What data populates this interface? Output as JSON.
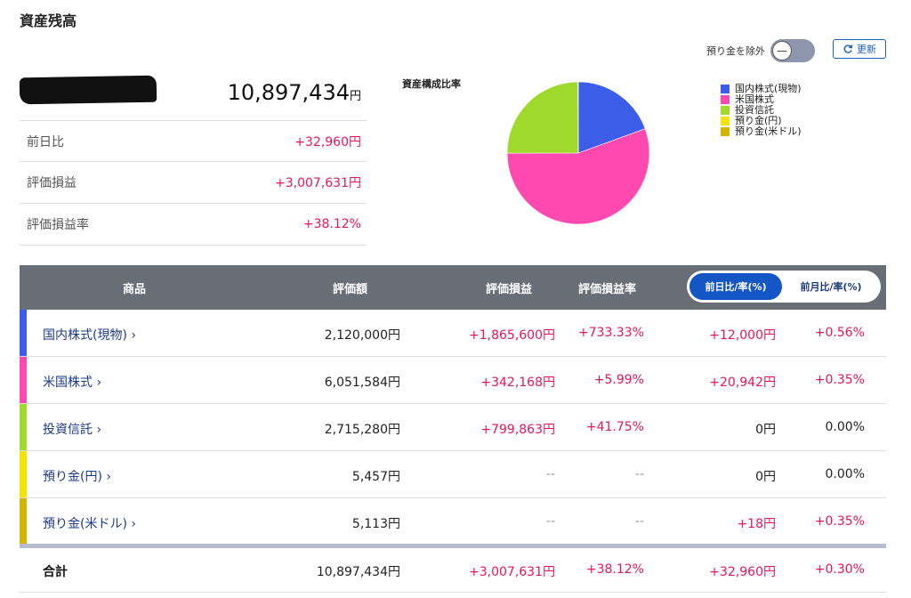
{
  "header": {
    "title": "資産残高"
  },
  "controls": {
    "exclude_deposit_label": "預り金を除外",
    "toggle_symbol": "—",
    "refresh_label": "更新"
  },
  "summary": {
    "total_value": "10,897,434",
    "total_unit": "円",
    "rows": [
      {
        "label": "前日比",
        "value": "+32,960円"
      },
      {
        "label": "評価損益",
        "value": "+3,007,631円"
      },
      {
        "label": "評価損益率",
        "value": "+38.12%"
      }
    ]
  },
  "chart_data": {
    "type": "pie",
    "title": "資産構成比率",
    "labels": [
      "国内株式(現物)",
      "米国株式",
      "投資信託",
      "預り金(円)",
      "預り金(米ドル)"
    ],
    "values": [
      2120000,
      6051584,
      2715280,
      5457,
      5113
    ],
    "colors": [
      "#3b5de7",
      "#ff48b0",
      "#9fd92b",
      "#f5e300",
      "#d3b500"
    ]
  },
  "table": {
    "headers": {
      "product": "商品",
      "valuation": "評価額",
      "gain": "評価損益",
      "gain_rate": "評価損益率",
      "toggle_day": "前日比/率(%)",
      "toggle_month": "前月比/率(%)"
    },
    "rows": [
      {
        "name": "国内株式(現物) ›",
        "color": "#3b5de7",
        "valuation": "2,120,000円",
        "gain": "+1,865,600円",
        "gain_rate": "+733.33%",
        "day_diff": "+12,000円",
        "day_rate": "+0.56%"
      },
      {
        "name": "米国株式 ›",
        "color": "#ff48b0",
        "valuation": "6,051,584円",
        "gain": "+342,168円",
        "gain_rate": "+5.99%",
        "day_diff": "+20,942円",
        "day_rate": "+0.35%"
      },
      {
        "name": "投資信託 ›",
        "color": "#9fd92b",
        "valuation": "2,715,280円",
        "gain": "+799,863円",
        "gain_rate": "+41.75%",
        "day_diff": "0円",
        "day_rate": "0.00%"
      },
      {
        "name": "預り金(円) ›",
        "color": "#f5e300",
        "valuation": "5,457円",
        "gain": "--",
        "gain_rate": "--",
        "day_diff": "0円",
        "day_rate": "0.00%"
      },
      {
        "name": "預り金(米ドル) ›",
        "color": "#d3b500",
        "valuation": "5,113円",
        "gain": "--",
        "gain_rate": "--",
        "day_diff": "+18円",
        "day_rate": "+0.35%"
      }
    ],
    "total": {
      "label": "合計",
      "valuation": "10,897,434円",
      "gain": "+3,007,631円",
      "gain_rate": "+38.12%",
      "day_diff": "+32,960円",
      "day_rate": "+0.30%"
    }
  }
}
